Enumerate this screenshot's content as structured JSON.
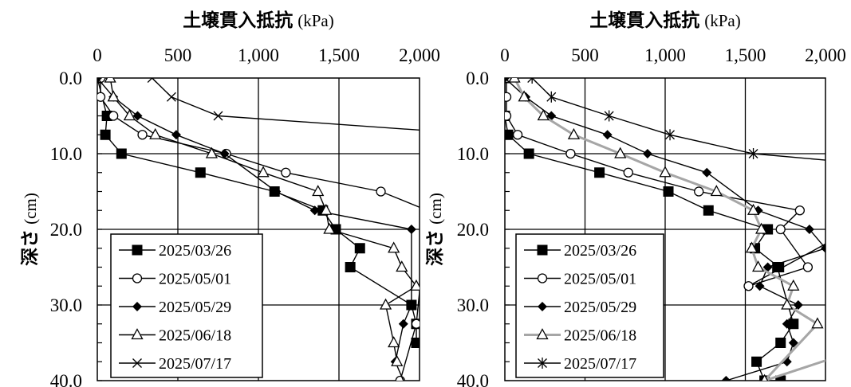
{
  "chart_data": [
    {
      "type": "line",
      "title": "",
      "xlabel": "土壌貫入抵抗",
      "xlabel_unit": "(kPa)",
      "ylabel": "深さ",
      "ylabel_unit": "(cm)",
      "xlim": [
        0,
        2000
      ],
      "ylim": [
        0,
        40
      ],
      "y_inverted": true,
      "x_axis_position": "top",
      "grid": true,
      "x_ticks": [
        0,
        500,
        1000,
        1500,
        2000
      ],
      "x_tick_labels": [
        "0",
        "500",
        "1,000",
        "1,500",
        "2,000"
      ],
      "y_ticks": [
        0,
        10,
        20,
        30,
        40
      ],
      "y_tick_labels": [
        "0.0",
        "10.0",
        "20.0",
        "30.0",
        "40.0"
      ],
      "legend": {
        "position": "lower-left"
      },
      "series": [
        {
          "name": "2025/03/26",
          "marker": "square-filled",
          "color": "#000000",
          "x": [
            0,
            60,
            50,
            150,
            640,
            1100,
            1400,
            1480,
            1630,
            1570,
            1950,
            1980,
            1980
          ],
          "y": [
            0,
            5,
            7.5,
            10,
            12.5,
            15,
            17.5,
            20,
            22.5,
            25,
            30,
            32.5,
            35
          ]
        },
        {
          "name": "2025/05/01",
          "marker": "circle-open",
          "color": "#000000",
          "x": [
            20,
            20,
            100,
            280,
            800,
            1170,
            1760,
            2050,
            1980,
            1880
          ],
          "y": [
            0,
            2.5,
            5,
            7.5,
            10,
            12.5,
            15,
            17.5,
            32.5,
            40
          ]
        },
        {
          "name": "2025/05/29",
          "marker": "diamond-filled",
          "color": "#000000",
          "x": [
            0,
            100,
            250,
            490,
            790,
            1110,
            1350,
            1950,
            1950,
            1900,
            1850,
            1950
          ],
          "y": [
            0,
            2.5,
            5,
            7.5,
            10,
            15,
            17.5,
            20,
            30,
            32.5,
            37.5,
            42.5
          ]
        },
        {
          "name": "2025/06/18",
          "marker": "triangle-open",
          "color": "#000000",
          "x": [
            80,
            100,
            200,
            360,
            710,
            1030,
            1370,
            1420,
            1440,
            1840,
            1890,
            1980,
            1790,
            1840,
            1860
          ],
          "y": [
            0,
            2.5,
            5,
            7.5,
            10,
            12.5,
            15,
            17.5,
            20,
            22.5,
            25,
            27.5,
            30,
            35,
            37.5
          ]
        },
        {
          "name": "2025/07/17",
          "marker": "x",
          "color": "#000000",
          "x": [
            340,
            460,
            750,
            2080
          ],
          "y": [
            0,
            2.5,
            5,
            7
          ]
        }
      ]
    },
    {
      "type": "line",
      "title": "",
      "xlabel": "土壌貫入抵抗",
      "xlabel_unit": "(kPa)",
      "ylabel": "深さ",
      "ylabel_unit": "(cm)",
      "xlim": [
        0,
        2000
      ],
      "ylim": [
        0,
        40
      ],
      "y_inverted": true,
      "x_axis_position": "top",
      "grid": true,
      "x_ticks": [
        0,
        500,
        1000,
        1500,
        2000
      ],
      "x_tick_labels": [
        "0",
        "500",
        "1,000",
        "1,500",
        "2,000"
      ],
      "y_ticks": [
        0,
        10,
        20,
        30,
        40
      ],
      "y_tick_labels": [
        "0.0",
        "10.0",
        "20.0",
        "30.0",
        "40.0"
      ],
      "legend": {
        "position": "lower-left"
      },
      "series": [
        {
          "name": "2025/03/26",
          "marker": "square-filled",
          "color": "#000000",
          "x": [
            0,
            0,
            20,
            150,
            590,
            1020,
            1270,
            1640,
            1560,
            1710,
            1700,
            1800,
            1720,
            1570,
            1620,
            1720
          ],
          "y": [
            0,
            5,
            7.5,
            10,
            12.5,
            15,
            17.5,
            20,
            22.5,
            25,
            25,
            32.5,
            35,
            37.5,
            40,
            40
          ]
        },
        {
          "name": "2025/05/01",
          "marker": "circle-open",
          "color": "#000000",
          "x": [
            10,
            10,
            10,
            80,
            410,
            770,
            1210,
            1840,
            1720,
            1890,
            1520,
            2080
          ],
          "y": [
            0,
            2.5,
            5,
            7.5,
            10,
            12.5,
            15,
            17.5,
            20,
            25,
            27.5,
            21
          ]
        },
        {
          "name": "2025/05/29",
          "marker": "diamond-filled",
          "color": "#000000",
          "x": [
            0,
            130,
            290,
            640,
            890,
            1260,
            1580,
            1900,
            2000,
            1640,
            1590,
            1830,
            1760,
            1800,
            1760,
            1380
          ],
          "y": [
            0,
            2.5,
            5,
            7.5,
            10,
            12.5,
            17.5,
            20,
            22.5,
            25,
            27.5,
            30,
            32.5,
            35,
            37.5,
            40
          ]
        },
        {
          "name": "2025/06/18",
          "marker": "triangle-open",
          "color": "#000000",
          "line_color": "#a6a6a6",
          "x": [
            60,
            120,
            240,
            430,
            720,
            1000,
            1320,
            1550,
            1600,
            1540,
            1580,
            1800,
            1760,
            1950,
            1620,
            2050
          ],
          "y": [
            0,
            2.5,
            5,
            7.5,
            10,
            12.5,
            15,
            17.5,
            20,
            22.5,
            25,
            27.5,
            30,
            32.5,
            40,
            37
          ]
        },
        {
          "name": "2025/07/17",
          "marker": "asterisk",
          "color": "#000000",
          "x": [
            170,
            290,
            650,
            1030,
            1550,
            2080
          ],
          "y": [
            0,
            2.5,
            5,
            7.5,
            10,
            11
          ]
        }
      ]
    }
  ]
}
